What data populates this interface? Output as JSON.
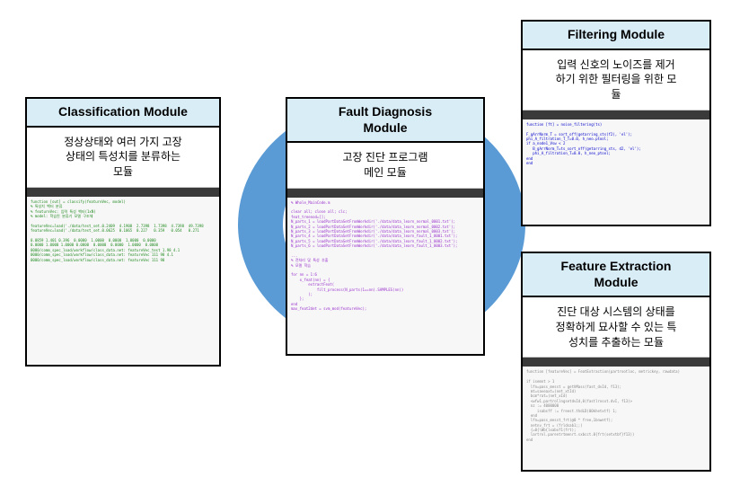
{
  "ring": {
    "outer_color": "#5b9bd5",
    "inner_color": "#ffffff"
  },
  "modules": {
    "classification": {
      "title": "Classification Module",
      "desc": "정상상태와 여러 가지 고장\n상태의 특성치를 분류하는\n모듈",
      "code": "function [out] = classify(featureVec, model)\n% 특성치 벡터 분류\n% featureVec: 입력 특성 벡터(1xN)\n% model: 학습된 분류기 모델 구조체\n\nfeatureVec=load('./data/test_set.0.2409  4.1908  2.7398  1.7398  4.7398  49.7398\nfeatureVec=load('./data/test_set.0.0625  0.1065  0.227   0.359   0.054   0.271\n\n0.0859 1.401 0.396  0.0000  1.0000  0.0000  1.0000  0.0000\n0.0000 1.0000 1.0000 0.0000  0.0000  0.0000  1.0000  0.0000\n0000/comm_spec_load/workflow/class_data.net: featureVec_test 1.98 4.1\n0000/comm_spec_load/workflow/class_data.net: featureVec 111 98 4.1\n0000/comm_spec_load/workflow/class_data.net: featureVec 111 98"
    },
    "fault": {
      "title": "Fault Diagnosis\nModule",
      "desc": "고장 진단 프로그램\n메인 모듈",
      "code": "% Whole_MainCode.m\n\nclear all; close all; clc;\nfeat_treenod=[];\nN_parts_1 = loadPartDataSetFromWorkdir('./data/data_learn_normal_0001.txt');\nN_parts_2 = loadPartDataSetFromWorkdir('./data/data_learn_normal_0002.txt');\nN_parts_3 = loadPartDataSetFromWorkdir('./data/data_learn_normal_0003.txt');\nN_parts_4 = loadPartDataSetFromWorkdir('./data/data_learn_fault_1_0001.txt');\nN_parts_5 = loadPartDataSetFromWorkdir('./data/data_learn_fault_1_0002.txt');\nN_parts_6 = loadPartDataSetFromWorkdir('./data/data_learn_fault_1_0003.txt');\n\n...\n% 전처리 및 특성 추출\n% 모델 학습\n\nfor nn = 1:6\n    x_feat(nn) = {\n        extractFeat(\n            filt_process(N_parts(1==nn).SAMPLES(nn))\n        );\n    };\nend\nmax_feat2det = svm_mod(featureVec);"
    },
    "filtering": {
      "title": "Filtering Module",
      "desc": "입력 신호의 노이즈를 제거\n하기 위한 필터링을 위한 모\n듈",
      "code": "function [ft] = noise_filtering(ts)\n\nF_gArrNorm_T = sort_off(getarring_sts(f2), 'el');\nphi_A_filtration_T_T=0.0, h_neo.ptool;\nif a_node1_Vsw < 2\n   B_gArrNorm_T=ts_sort_off(getarring_sts, d2, 'el');\n   phi_A_filtration_T=0.0, h_neo_ptool;\nend\nend"
    },
    "feature": {
      "title": "Feature Extraction\nModule",
      "desc": "진단 대상 시스템의 상태를\n정확하게 묘사할 수 있는 특\n성치를 추출하는 모듈",
      "code": "function [featureVec] = FeatExtraction(partrootloc, metrickey, rawdata)\n\nif isemot > 1\n  lfn=pass_messt = gethMass(fast_dvId, f13);\n  mt=saveaxt=(net_xtId)\n  bcm*rat=(net_xId)\n  <wfw1.partrollngsetdvId,0(fastlrosxt.dvI, f13)>\n  nz := 4000000\n     isabsff := freest.thdLD(00khetxtf) 1;\n  end\n  lfn=pass_messt_frt(@0 * free,1bnwetf);\n  netnv_frt = (frldsab1;;)\n  {=0{\\Wb{lxabxf1(frt);\n  lartrol.parentrtmenrt.sxbcct.0{frt(setxtbf}f13))\nend"
    }
  }
}
